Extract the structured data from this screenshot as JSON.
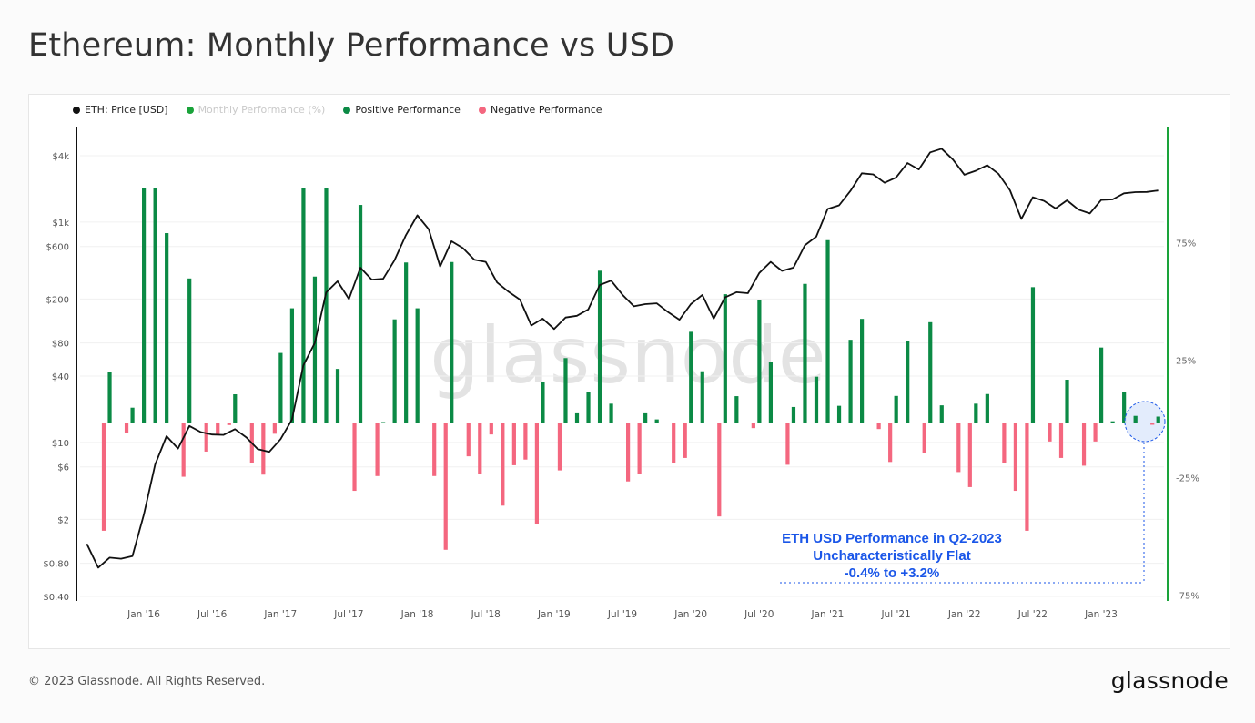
{
  "page": {
    "title": "Ethereum: Monthly Performance vs USD",
    "footer": "© 2023 Glassnode. All Rights Reserved.",
    "logo": "glassnode",
    "watermark": "glassnode"
  },
  "legend": [
    {
      "label": "ETH: Price [USD]",
      "color": "#111111",
      "active": true
    },
    {
      "label": "Monthly Performance (%)",
      "color": "#1aa33a",
      "active": false
    },
    {
      "label": "Positive Performance",
      "color": "#0b8a45",
      "active": true
    },
    {
      "label": "Negative Performance",
      "color": "#f4677f",
      "active": true
    }
  ],
  "annotation": {
    "lines": [
      "ETH USD Performance in Q2-2023",
      "Uncharacteristically Flat",
      "-0.4% to +3.2%"
    ],
    "color": "#1a56e8"
  },
  "chart_data": {
    "type": "bar+line",
    "title": "Ethereum: Monthly Performance vs USD",
    "x_ticks": [
      "Jan '16",
      "Jul '16",
      "Jan '17",
      "Jul '17",
      "Jan '18",
      "Jul '18",
      "Jan '19",
      "Jul '19",
      "Jan '20",
      "Jul '20",
      "Jan '21",
      "Jul '21",
      "Jan '22",
      "Jul '22",
      "Jan '23"
    ],
    "left_axis": {
      "scale": "log",
      "ticks": [
        "$4k",
        "$1k",
        "$600",
        "$200",
        "$80",
        "$40",
        "$10",
        "$6",
        "$2",
        "$0.80",
        "$0.40"
      ],
      "tick_values": [
        4000,
        1000,
        600,
        200,
        80,
        40,
        10,
        6,
        2,
        0.8,
        0.4
      ],
      "range": [
        0.36,
        7200
      ]
    },
    "right_axis": {
      "scale": "linear",
      "ticks": [
        "75%",
        "25%",
        "-25%",
        "-75%"
      ],
      "tick_values": [
        75,
        25,
        -25,
        -75
      ],
      "range": [
        -76,
        100
      ],
      "color": "#1aa33a"
    },
    "grid": true,
    "legend_position": "top-left",
    "price_series": {
      "name": "ETH: Price [USD]",
      "start": "2015-08",
      "values": [
        1.2,
        0.73,
        0.9,
        0.88,
        0.93,
        2.2,
        6.3,
        11.4,
        8.8,
        14.1,
        12.4,
        11.8,
        11.7,
        13.2,
        11.1,
        8.7,
        8.2,
        10.7,
        16.1,
        50,
        80,
        230,
        290,
        200,
        385,
        300,
        305,
        450,
        760,
        1150,
        860,
        395,
        670,
        580,
        455,
        435,
        283,
        233,
        198,
        115,
        133,
        107,
        136,
        141,
        161,
        268,
        294,
        219,
        172,
        180,
        183,
        152,
        130,
        180,
        218,
        133,
        207,
        231,
        226,
        345,
        435,
        360,
        386,
        615,
        737,
        1314,
        1419,
        1919,
        2773,
        2707,
        2275,
        2537,
        3433,
        3001,
        4288,
        4631,
        3683,
        2688,
        2922,
        3283,
        2730,
        1942,
        1068,
        1679,
        1553,
        1328,
        1573,
        1296,
        1196,
        1585,
        1605,
        1822,
        1870,
        1874,
        1934
      ]
    },
    "performance_series": {
      "name": "Monthly Performance (%)",
      "start": "2015-09",
      "positive_color": "#0b8a45",
      "negative_color": "#f4677f",
      "values": [
        -45.7,
        22,
        -4,
        6.7,
        100,
        100,
        81,
        -22.7,
        61.7,
        -12,
        -5,
        -0.7,
        12.4,
        -16.7,
        -21.8,
        -4.4,
        30,
        49,
        100,
        62.5,
        100,
        23.2,
        -28.7,
        93,
        -22.4,
        0.4,
        44.3,
        68.5,
        49,
        -22.4,
        -53.8,
        68.7,
        -14,
        -21.4,
        -4.7,
        -35,
        -17.8,
        -15.4,
        -42.7,
        17.8,
        -20,
        27.8,
        4.3,
        13.3,
        65,
        8.4,
        -24.7,
        -21.4,
        4.3,
        1.7,
        -17,
        -14.7,
        39,
        22.2,
        -39.6,
        55,
        11.6,
        -2,
        52.7,
        26.2,
        -17.6,
        7,
        59.4,
        19.9,
        78,
        7.5,
        35.6,
        44.5,
        -2.4,
        -16.4,
        11.7,
        35.2,
        -12.7,
        43.1,
        7.7,
        -20.7,
        -27.1,
        8.4,
        12.5,
        -16.7,
        -28.7,
        -45.7,
        58,
        -7.7,
        -14.7,
        18.6,
        -18,
        -7.7,
        32.3,
        0.9,
        13.2,
        3.2,
        -0.4,
        2.9
      ]
    },
    "highlight": {
      "period": "Q2-2023",
      "range_pct": [
        -0.4,
        3.2
      ]
    }
  }
}
